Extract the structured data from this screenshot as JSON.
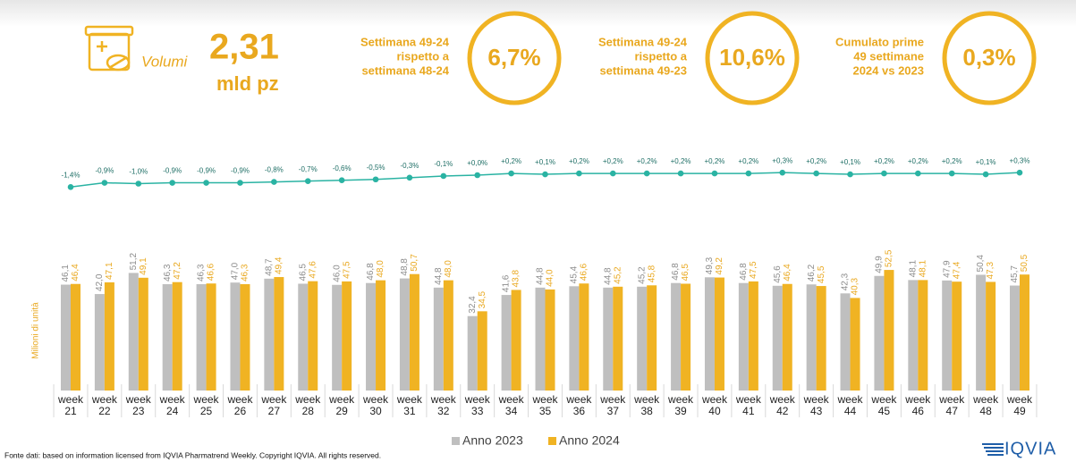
{
  "header": {
    "volume_label": "Volumi",
    "volume_value": "2,31",
    "volume_unit": "mld pz",
    "kpis": [
      {
        "lines": [
          "Settimana 49-24",
          "rispetto a",
          "settimana 48-24"
        ],
        "value": "6,7%"
      },
      {
        "lines": [
          "Settimana 49-24",
          "rispetto a",
          "settimana 49-23"
        ],
        "value": "10,6%"
      },
      {
        "lines": [
          "Cumulato prime",
          "49 settimane",
          "2024 vs 2023"
        ],
        "value": "0,3%"
      }
    ]
  },
  "chart_data": {
    "type": "bar",
    "y_label": "Milioni di unità",
    "categories": [
      "week 21",
      "week 22",
      "week 23",
      "week 24",
      "week 25",
      "week 26",
      "week 27",
      "week 28",
      "week 29",
      "week 30",
      "week 31",
      "week 32",
      "week 33",
      "week 34",
      "week 35",
      "week 36",
      "week 37",
      "week 38",
      "week 39",
      "week 40",
      "week 41",
      "week 42",
      "week 43",
      "week 44",
      "week 45",
      "week 46",
      "week 47",
      "week 48",
      "week 49"
    ],
    "series": [
      {
        "name": "Anno 2023",
        "color": "#bfbfbf",
        "values": [
          46.1,
          42.0,
          51.2,
          46.3,
          46.3,
          47.0,
          48.7,
          46.5,
          46.0,
          46.8,
          48.8,
          44.8,
          32.4,
          41.6,
          44.8,
          45.4,
          44.8,
          45.2,
          46.8,
          49.3,
          46.8,
          45.6,
          46.2,
          42.3,
          49.9,
          48.1,
          47.9,
          50.4,
          45.7
        ],
        "value_labels": [
          "46,1",
          "42,0",
          "51,2",
          "46,3",
          "46,3",
          "47,0",
          "48,7",
          "46,5",
          "46,0",
          "46,8",
          "48,8",
          "44,8",
          "32,4",
          "41,6",
          "44,8",
          "45,4",
          "44,8",
          "45,2",
          "46,8",
          "49,3",
          "46,8",
          "45,6",
          "46,2",
          "42,3",
          "49,9",
          "48,1",
          "47,9",
          "50,4",
          "45,7"
        ]
      },
      {
        "name": "Anno 2024",
        "color": "#f0b323",
        "values": [
          46.4,
          47.1,
          49.1,
          47.2,
          46.6,
          46.3,
          49.4,
          47.6,
          47.5,
          48.0,
          50.7,
          48.0,
          34.5,
          43.8,
          44.0,
          46.6,
          45.2,
          45.8,
          46.5,
          49.2,
          47.5,
          46.4,
          45.5,
          40.3,
          52.5,
          48.1,
          47.4,
          47.3,
          50.5
        ],
        "value_labels": [
          "46,4",
          "47,1",
          "49,1",
          "47,2",
          "46,6",
          "46,3",
          "49,4",
          "47,6",
          "47,5",
          "48,0",
          "50,7",
          "48,0",
          "34,5",
          "43,8",
          "44,0",
          "46,6",
          "45,2",
          "45,8",
          "46,5",
          "49,2",
          "47,5",
          "46,4",
          "45,5",
          "40,3",
          "52,5",
          "48,1",
          "47,4",
          "47,3",
          "50,5"
        ]
      }
    ],
    "line_series": {
      "color": "#2ab3a3",
      "values": [
        -1.4,
        -0.9,
        -1.0,
        -0.9,
        -0.9,
        -0.9,
        -0.8,
        -0.7,
        -0.6,
        -0.5,
        -0.3,
        -0.1,
        0.0,
        0.2,
        0.1,
        0.2,
        0.2,
        0.2,
        0.2,
        0.2,
        0.2,
        0.3,
        0.2,
        0.1,
        0.2,
        0.2,
        0.2,
        0.1,
        0.3
      ],
      "value_labels": [
        "-1,4%",
        "-0,9%",
        "-1,0%",
        "-0,9%",
        "-0,9%",
        "-0,9%",
        "-0,8%",
        "-0,7%",
        "-0,6%",
        "-0,5%",
        "-0,3%",
        "-0,1%",
        "+0,0%",
        "+0,2%",
        "+0,1%",
        "+0,2%",
        "+0,2%",
        "+0,2%",
        "+0,2%",
        "+0,2%",
        "+0,2%",
        "+0,3%",
        "+0,2%",
        "+0,1%",
        "+0,2%",
        "+0,2%",
        "+0,2%",
        "+0,1%",
        "+0,3%"
      ]
    }
  },
  "footer": {
    "source": "Fonte dati: based on information licensed from IQVIA Pharmatrend Weekly. Copyright IQVIA. All rights reserved.",
    "logo": "IQVIA"
  }
}
